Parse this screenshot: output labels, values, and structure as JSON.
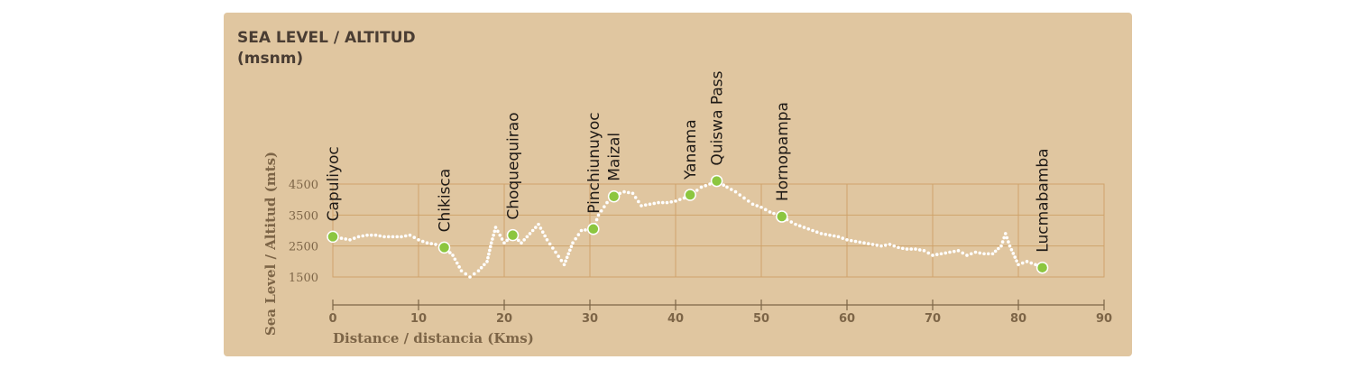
{
  "chart_data": {
    "type": "line",
    "title": "SEA LEVEL / ALTITUD",
    "subtitle": "(msnm)",
    "xlabel": "Distance / distancia (Kms)",
    "ylabel": "Sea Level / Altitud (mts)",
    "xlim": [
      0,
      90
    ],
    "ylim": [
      1000,
      4700
    ],
    "x_ticks": [
      "0",
      "10",
      "20",
      "30",
      "40",
      "50",
      "60",
      "70",
      "80",
      "90"
    ],
    "y_ticks": [
      "4500",
      "3500",
      "2500",
      "1500"
    ],
    "grid": true,
    "series": [
      {
        "x": [
          0,
          1,
          2,
          3,
          4,
          5,
          6,
          7,
          8,
          9,
          10,
          11,
          12,
          13,
          14,
          15,
          16,
          17,
          18,
          18.5,
          19,
          20,
          21,
          22,
          23,
          24,
          25,
          26,
          27,
          28,
          29,
          30.4,
          31,
          32,
          32.8,
          33.5,
          34,
          35,
          36,
          37,
          38,
          39,
          40,
          41,
          41.7,
          42,
          43,
          44,
          44.8,
          46,
          47,
          48,
          49,
          50,
          51,
          52.4,
          53,
          54,
          55,
          56,
          57,
          58,
          59,
          60,
          61,
          62,
          63,
          64,
          65,
          66,
          67,
          68,
          69,
          70,
          71,
          72,
          73,
          74,
          75,
          76,
          77,
          78,
          78.5,
          79,
          80,
          81,
          82,
          82.8
        ],
        "y": [
          2800,
          2750,
          2700,
          2800,
          2850,
          2850,
          2800,
          2800,
          2800,
          2850,
          2700,
          2600,
          2550,
          2450,
          2200,
          1700,
          1500,
          1700,
          2000,
          2600,
          3100,
          2600,
          2850,
          2600,
          2900,
          3200,
          2700,
          2300,
          1900,
          2600,
          3000,
          3050,
          3500,
          3900,
          4100,
          4200,
          4250,
          4200,
          3800,
          3850,
          3900,
          3900,
          3950,
          4050,
          4150,
          4200,
          4400,
          4500,
          4600,
          4400,
          4250,
          4050,
          3850,
          3750,
          3600,
          3450,
          3350,
          3200,
          3100,
          3000,
          2900,
          2850,
          2800,
          2700,
          2650,
          2600,
          2550,
          2500,
          2550,
          2450,
          2400,
          2400,
          2350,
          2200,
          2250,
          2300,
          2350,
          2200,
          2300,
          2250,
          2250,
          2500,
          2900,
          2500,
          1900,
          2000,
          1900,
          1800
        ]
      }
    ],
    "waypoints": [
      {
        "label": "Capuliyoc",
        "x": 0,
        "y": 2800
      },
      {
        "label": "Chikisca",
        "x": 13,
        "y": 2450
      },
      {
        "label": "Choquequirao",
        "x": 21,
        "y": 2850
      },
      {
        "label": "Pinchiunuyoc",
        "x": 30.4,
        "y": 3050
      },
      {
        "label": "Maizal",
        "x": 32.8,
        "y": 4100
      },
      {
        "label": "Yanama",
        "x": 41.7,
        "y": 4150
      },
      {
        "label": "Quiswa Pass",
        "x": 44.8,
        "y": 4600
      },
      {
        "label": "Hornopampa",
        "x": 52.4,
        "y": 3450
      },
      {
        "label": "Lucmabamba",
        "x": 82.8,
        "y": 1800
      }
    ],
    "colors": {
      "background": "#e0c6a0",
      "grid": "#cfa36b",
      "axis": "#7d6547",
      "line_dots": "#ffffff",
      "waypoint": "#8cc63f",
      "waypoint_ring": "#ffffff",
      "title": "#4a3d33",
      "labels": "#1f1a16"
    }
  }
}
